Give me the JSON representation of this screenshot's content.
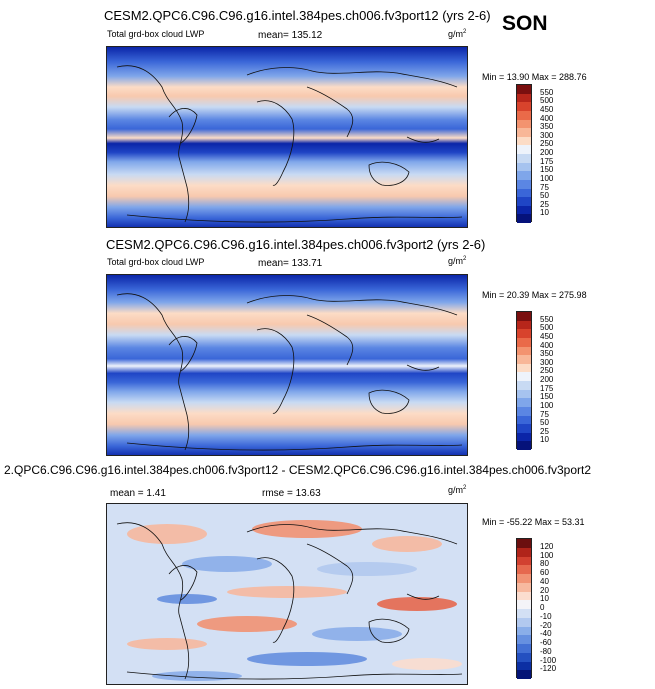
{
  "season": "SON",
  "panels": [
    {
      "title": "CESM2.QPC6.C96.C96.g16.intel.384pes.ch006.fv3port12 (yrs 2-6)",
      "variable": "Total grd-box cloud LWP",
      "stat_text": "mean= 135.12",
      "units": "g/m",
      "units_exp": "2",
      "min_max": "Min = 13.90 Max = 288.76",
      "colorbar_labels": [
        "550",
        "500",
        "450",
        "400",
        "350",
        "300",
        "250",
        "200",
        "175",
        "150",
        "100",
        "75",
        "50",
        "25",
        "10"
      ]
    },
    {
      "title": "CESM2.QPC6.C96.C96.g16.intel.384pes.ch006.fv3port2 (yrs 2-6)",
      "variable": "Total grd-box cloud LWP",
      "stat_text": "mean= 133.71",
      "units": "g/m",
      "units_exp": "2",
      "min_max": "Min = 20.39 Max = 275.98",
      "colorbar_labels": [
        "550",
        "500",
        "450",
        "400",
        "350",
        "300",
        "250",
        "200",
        "175",
        "150",
        "100",
        "75",
        "50",
        "25",
        "10"
      ]
    },
    {
      "title": "2.QPC6.C96.C96.g16.intel.384pes.ch006.fv3port12 - CESM2.QPC6.C96.C96.g16.intel.384pes.ch006.fv3port2",
      "stat_text": "mean =   1.41",
      "rmse_text": "rmse =  13.63",
      "units": "g/m",
      "units_exp": "2",
      "min_max": "Min = -55.22 Max =  53.31",
      "colorbar_labels": [
        "120",
        "100",
        "80",
        "60",
        "40",
        "20",
        "10",
        "0",
        "-10",
        "-20",
        "-40",
        "-60",
        "-80",
        "-100",
        "-120"
      ]
    }
  ],
  "colors": {
    "abs_scale": [
      "#7a0f0f",
      "#b7261b",
      "#d8432c",
      "#ea6a49",
      "#f3936f",
      "#f8b798",
      "#fcdcc6",
      "#eef3fb",
      "#c8daf3",
      "#a6c3ef",
      "#7fa6ea",
      "#5b86e3",
      "#3a66d8",
      "#1f45c5",
      "#0b25a8",
      "#05127a"
    ],
    "diff_scale": [
      "#6b0f0f",
      "#b0241a",
      "#d24130",
      "#e6694e",
      "#f19374",
      "#f7b99f",
      "#fbddcf",
      "#f4f4f8",
      "#d3e0f4",
      "#b2c9ef",
      "#8aaee9",
      "#6690e0",
      "#4370d4",
      "#2450c0",
      "#0c2fa3",
      "#041476"
    ]
  }
}
